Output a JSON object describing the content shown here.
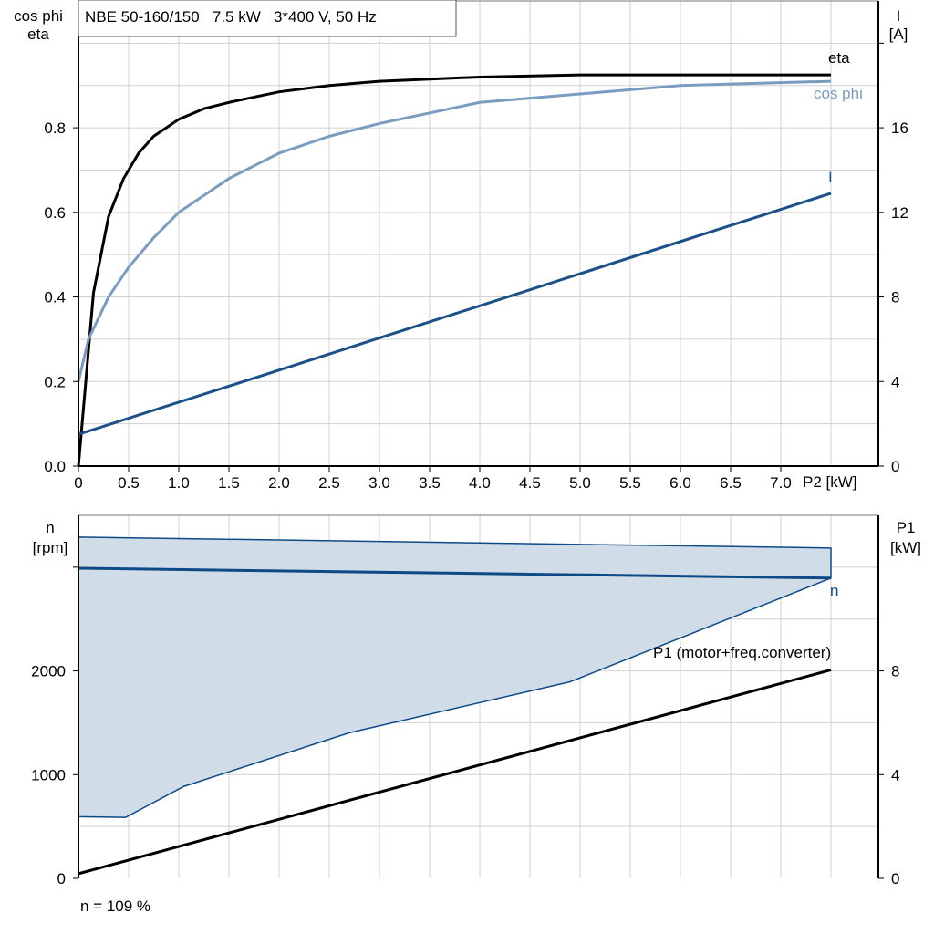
{
  "chart_data": [
    {
      "type": "line",
      "title": "NBE 50-160/150   7.5 kW   3*400 V, 50 Hz",
      "xlabel": "P2 [kW]",
      "x_ticks": [
        "0",
        "0.5",
        "1.0",
        "1.5",
        "2.0",
        "2.5",
        "3.0",
        "3.5",
        "4.0",
        "4.5",
        "5.0",
        "5.5",
        "6.0",
        "6.5",
        "7.0"
      ],
      "x_end_label": "P2 [kW]",
      "xlim": [
        0,
        8
      ],
      "ylabel_left": [
        "cos phi",
        "eta"
      ],
      "ylim_left": [
        0,
        1.1
      ],
      "y_ticks_left": [
        "0.0",
        "0.2",
        "0.4",
        "0.6",
        "0.8"
      ],
      "ylabel_right": [
        "I",
        "[A]"
      ],
      "ylim_right": [
        0,
        22
      ],
      "y_ticks_right": [
        "0",
        "4",
        "8",
        "12",
        "16"
      ],
      "grid": true,
      "series": [
        {
          "name": "eta",
          "axis": "left",
          "color": "#000000",
          "x": [
            0,
            0.15,
            0.3,
            0.45,
            0.6,
            0.75,
            1.0,
            1.25,
            1.5,
            2.0,
            2.5,
            3.0,
            4.0,
            5.0,
            6.0,
            7.5
          ],
          "y": [
            0,
            0.41,
            0.59,
            0.68,
            0.74,
            0.78,
            0.82,
            0.845,
            0.86,
            0.885,
            0.9,
            0.91,
            0.92,
            0.925,
            0.925,
            0.925
          ]
        },
        {
          "name": "cos phi",
          "axis": "left",
          "color": "#7a9cc0",
          "x": [
            0,
            0.1,
            0.3,
            0.5,
            0.75,
            1.0,
            1.5,
            2.0,
            2.5,
            3.0,
            4.0,
            5.0,
            6.0,
            7.5
          ],
          "y": [
            0.2,
            0.3,
            0.4,
            0.47,
            0.54,
            0.6,
            0.68,
            0.74,
            0.78,
            0.81,
            0.86,
            0.88,
            0.9,
            0.91
          ]
        },
        {
          "name": "I",
          "axis": "right",
          "color": "#1b5088",
          "x": [
            0,
            7.5
          ],
          "y": [
            1.5,
            12.9
          ]
        }
      ]
    },
    {
      "type": "line",
      "xlim": [
        0,
        8
      ],
      "ylabel_left": [
        "n",
        "[rpm]"
      ],
      "ylim_left": [
        0,
        3500
      ],
      "y_ticks_left": [
        "0",
        "1000",
        "2000"
      ],
      "ylabel_right": [
        "P1",
        "[kW]"
      ],
      "ylim_right": [
        0,
        14
      ],
      "y_ticks_right": [
        "0",
        "4",
        "8"
      ],
      "grid": true,
      "area": {
        "name": "n range",
        "color": "#d0dce8",
        "edge": "#0d4a86",
        "upper": {
          "x": [
            0,
            7.5
          ],
          "y": [
            3290,
            3185
          ]
        },
        "lower": {
          "x": [
            0,
            0.47,
            1.05,
            2.7,
            4.9,
            7.5
          ],
          "y": [
            595,
            588,
            886,
            1404,
            1895,
            2895
          ]
        }
      },
      "series": [
        {
          "name": "n",
          "axis": "left",
          "color": "#0d4a86",
          "x": [
            0,
            7.5
          ],
          "y": [
            2990,
            2895
          ]
        },
        {
          "name": "P1 (motor+freq.converter)",
          "axis": "right",
          "color": "#000000",
          "x": [
            0,
            7.5
          ],
          "y": [
            0.18,
            8.04
          ]
        }
      ],
      "footnote": "n = 109 %"
    }
  ]
}
